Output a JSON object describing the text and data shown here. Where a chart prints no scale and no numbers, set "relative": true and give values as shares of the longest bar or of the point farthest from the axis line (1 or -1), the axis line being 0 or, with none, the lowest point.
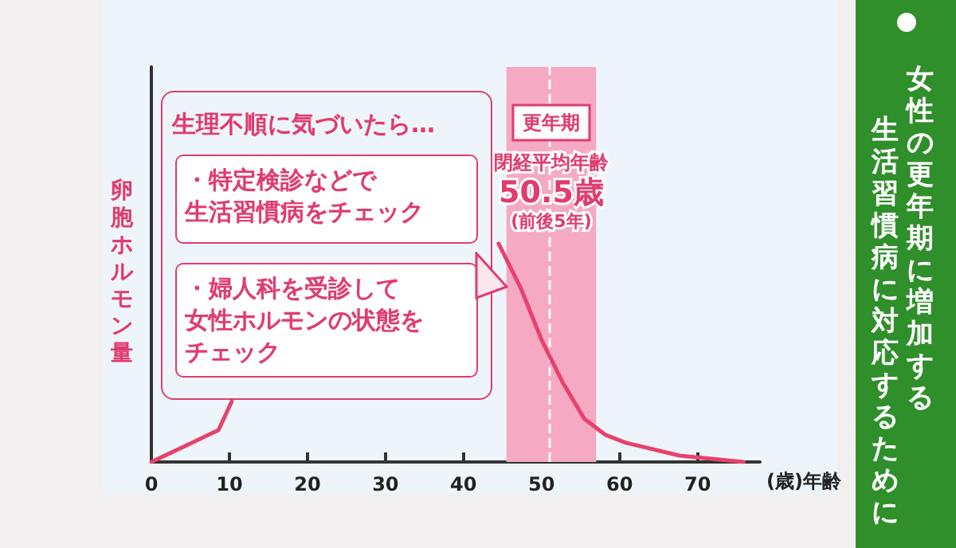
{
  "chart_data": {
    "type": "line",
    "title": "女性の更年期に増加する",
    "subtitle": "生活習慣病に対応するために",
    "xlabel": "(歳)年齢",
    "ylabel": "卵胞ホルモン量",
    "relative": true,
    "x": [
      0,
      8.6,
      10.3,
      20,
      30,
      40,
      44.5,
      47.3,
      50,
      52.7,
      55.5,
      58.2,
      60.8,
      67.7,
      75.9
    ],
    "series": [
      {
        "color": "#e8416e",
        "values": [
          0,
          0.146,
          0.277,
          null,
          null,
          null,
          1,
          0.8,
          0.56,
          0.365,
          0.197,
          0.124,
          0.088,
          0.029,
          0
        ]
      }
    ],
    "xlim": [
      0,
      78
    ],
    "xticks": [
      0,
      10,
      20,
      30,
      40,
      50,
      60,
      70
    ],
    "bands": [
      {
        "axis": "x",
        "from": 45.5,
        "to": 57,
        "label": "更年期",
        "color": "#f5a9c3"
      }
    ],
    "ref_lines": [
      {
        "axis": "x",
        "value": 51,
        "color": "#ffffff",
        "line_style": "dashed"
      }
    ],
    "annotations": [
      "生理不順に気づいたら…",
      "・特定検診などで",
      "生活習慣病をチェック",
      "・婦人科を受診して",
      "女性ホルモンの状態を",
      "チェック",
      "閉経平均年齢",
      "50.5歳",
      "(前後5年)"
    ],
    "grid": false,
    "marker": "none",
    "line_style": "solid"
  }
}
